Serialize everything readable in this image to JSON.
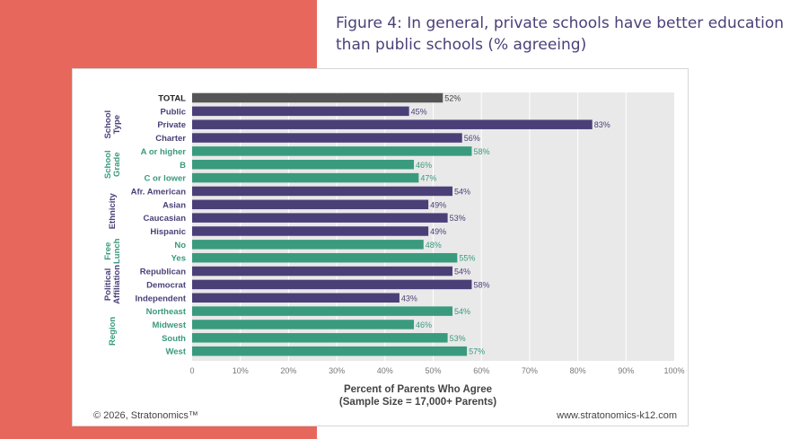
{
  "title": "Figure 4: In general, private schools have better education than public schools (% agreeing)",
  "footer": {
    "copyright": "© 2026, Stratonomics™",
    "url": "www.stratonomics-k12.com"
  },
  "colors": {
    "background_panel": "#e8675c",
    "total": "#555555",
    "purple": "#4b3f78",
    "green": "#3a9a7e",
    "plot_bg": "#e9e9e9"
  },
  "chart_data": {
    "type": "bar",
    "orientation": "horizontal",
    "xlabel": "Percent of Parents Who Agree",
    "xlabel_sub": "(Sample Size = 17,000+ Parents)",
    "xlim": [
      0,
      100
    ],
    "xticks": [
      "0",
      "10%",
      "20%",
      "30%",
      "40%",
      "50%",
      "60%",
      "70%",
      "80%",
      "90%",
      "100%"
    ],
    "grid": true,
    "categories": [
      "TOTAL",
      "Public",
      "Private",
      "Charter",
      "A or higher",
      "B",
      "C or lower",
      "Afr. American",
      "Asian",
      "Caucasian",
      "Hispanic",
      "No",
      "Yes",
      "Republican",
      "Democrat",
      "Independent",
      "Northeast",
      "Midwest",
      "South",
      "West"
    ],
    "values": [
      52,
      45,
      83,
      56,
      58,
      46,
      47,
      54,
      49,
      53,
      49,
      48,
      55,
      54,
      58,
      43,
      54,
      46,
      53,
      57
    ],
    "value_labels": [
      "52%",
      "45%",
      "83%",
      "56%",
      "58%",
      "46%",
      "47%",
      "54%",
      "49%",
      "53%",
      "49%",
      "48%",
      "55%",
      "54%",
      "58%",
      "43%",
      "54%",
      "46%",
      "53%",
      "57%"
    ],
    "groups": [
      {
        "label": "School Type",
        "start": 1,
        "end": 3,
        "color": "purple"
      },
      {
        "label": "School Grade",
        "start": 4,
        "end": 6,
        "color": "green"
      },
      {
        "label": "Ethnicity",
        "start": 7,
        "end": 10,
        "color": "purple"
      },
      {
        "label": "Free Lunch",
        "start": 11,
        "end": 12,
        "color": "green"
      },
      {
        "label": "Political Affiliation",
        "start": 13,
        "end": 15,
        "color": "purple"
      },
      {
        "label": "Region",
        "start": 16,
        "end": 19,
        "color": "green"
      }
    ]
  }
}
